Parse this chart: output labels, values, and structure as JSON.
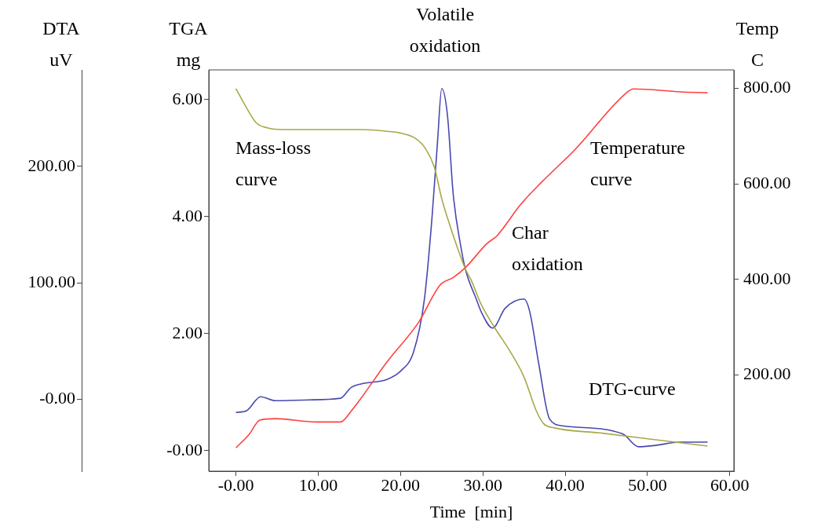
{
  "chart_data": {
    "type": "line",
    "xlabel": "Time  [min]",
    "ylabel": "TGA mg",
    "y2label": "Temp C",
    "y3label": "DTA uV",
    "xlim": [
      -3.3,
      60.5
    ],
    "xticks": [
      {
        "value": 0,
        "label": "-0.00"
      },
      {
        "value": 10,
        "label": "10.00"
      },
      {
        "value": 20,
        "label": "20.00"
      },
      {
        "value": 30,
        "label": "30.00"
      },
      {
        "value": 40,
        "label": "40.00"
      },
      {
        "value": 50,
        "label": "50.00"
      },
      {
        "value": 60,
        "label": "60.00"
      }
    ],
    "ylim": [
      -0.35,
      6.51
    ],
    "yticks": [
      {
        "value": 0,
        "label": "-0.00"
      },
      {
        "value": 2,
        "label": "2.00"
      },
      {
        "value": 4,
        "label": "4.00"
      },
      {
        "value": 6,
        "label": "6.00"
      }
    ],
    "y2lim": [
      -2,
      839
    ],
    "y2ticks": [
      {
        "value": 200,
        "label": "200.00"
      },
      {
        "value": 400,
        "label": "400.00"
      },
      {
        "value": 600,
        "label": "600.00"
      },
      {
        "value": 800,
        "label": "800.00"
      }
    ],
    "y3lim": [
      -62,
      283
    ],
    "y3ticks": [
      {
        "value": 0,
        "label": "-0.00"
      },
      {
        "value": 100,
        "label": "100.00"
      },
      {
        "value": 200,
        "label": "200.00"
      }
    ],
    "grid": false,
    "legend": false,
    "marker": "none",
    "line_style": "solid",
    "annotations": [
      "Volatile oxidation",
      "Char oxidation"
    ],
    "series": [
      {
        "name": "Mass-loss curve",
        "color": "#a8a848",
        "x": [
          0,
          1.25,
          2.5,
          3.8,
          5.7,
          15.2,
          18.4,
          20.3,
          21.9,
          23.1,
          24.1,
          25.0,
          26.0,
          27.9,
          28.6,
          29.8,
          31.4,
          33.3,
          35.0,
          36.5,
          37.4,
          38.7,
          44.5,
          50.8,
          57.3
        ],
        "values": [
          6.19,
          5.87,
          5.6,
          5.52,
          5.49,
          5.49,
          5.46,
          5.42,
          5.33,
          5.15,
          4.85,
          4.31,
          3.85,
          3.1,
          2.91,
          2.5,
          2.11,
          1.7,
          1.26,
          0.68,
          0.46,
          0.39,
          0.3,
          0.19,
          0.08
        ]
      },
      {
        "name": "Temperature curve",
        "color": "#ff4040",
        "axis": "y2",
        "x": [
          0,
          1.6,
          2.9,
          4.8,
          9.8,
          12.7,
          14.0,
          18.4,
          22.2,
          24.8,
          26.4,
          27.9,
          30.5,
          31.7,
          34.6,
          37.1,
          41.2,
          47.6,
          48.3,
          54.0,
          57.3
        ],
        "values": [
          47,
          75,
          105,
          108,
          101,
          101,
          124,
          228,
          310,
          388,
          404,
          425,
          475,
          491,
          557,
          603,
          672,
          793,
          799,
          793,
          791
        ]
      },
      {
        "name": "DTG-curve",
        "color": "#4848b0",
        "axis": "y3",
        "x": [
          0,
          1.3,
          3.0,
          4.8,
          8.9,
          12.7,
          14.0,
          15.2,
          18.4,
          20.0,
          21.6,
          22.9,
          23.8,
          24.5,
          25.0,
          25.7,
          26.4,
          27.3,
          27.9,
          29.2,
          29.8,
          31.2,
          32.7,
          35.0,
          35.7,
          36.8,
          38.1,
          39.7,
          47.0,
          48.9,
          50.8,
          54.0,
          57.3
        ],
        "values": [
          -11.5,
          -10,
          2,
          -1.4,
          -0.7,
          0.7,
          10,
          13,
          17,
          24,
          41,
          86,
          154,
          222,
          267,
          244,
          176,
          132,
          111,
          86,
          75,
          61,
          78,
          86,
          75,
          30,
          -17,
          -23,
          -30,
          -41,
          -40,
          -37,
          -37
        ]
      }
    ]
  }
}
